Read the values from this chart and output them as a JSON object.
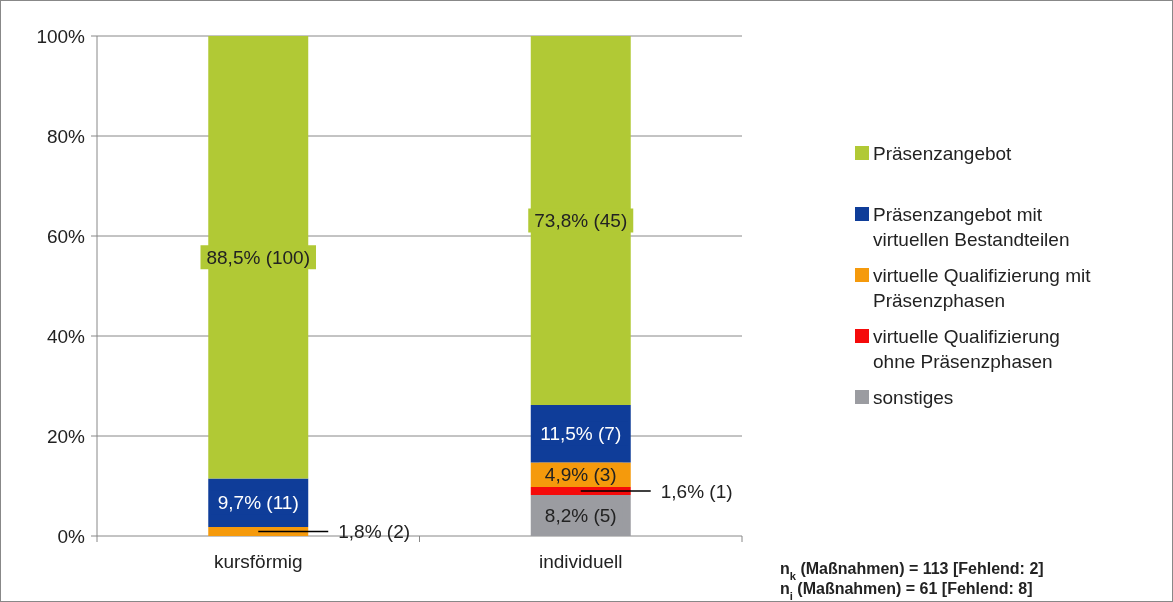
{
  "chart_data": {
    "type": "bar",
    "stacked": true,
    "categories": [
      "kursförmig",
      "individuell"
    ],
    "series": [
      {
        "name": "sonstiges",
        "color": "#9b9ca1",
        "values": [
          0,
          8.2
        ],
        "value_labels": [
          null,
          "8,2% (5)"
        ]
      },
      {
        "name": "virtuelle Qualifizierung ohne Präsenzphasen",
        "color": "#f50a0a",
        "values": [
          0,
          1.6
        ],
        "value_labels": [
          null,
          "1,6% (1)"
        ]
      },
      {
        "name": "virtuelle Qualifizierung mit Präsenzphasen",
        "color": "#f59a0c",
        "values": [
          1.8,
          4.9
        ],
        "value_labels": [
          "1,8% (2)",
          "4,9% (3)"
        ]
      },
      {
        "name": "Präsenzangebot mit virtuellen Bestandteilen",
        "color": "#0f3d99",
        "values": [
          9.7,
          11.5
        ],
        "value_labels": [
          "9,7% (11)",
          "11,5% (7)"
        ]
      },
      {
        "name": "Präsenzangebot",
        "color": "#b1c935",
        "values": [
          88.5,
          73.8
        ],
        "value_labels": [
          "88,5% (100)",
          "73,8% (45)"
        ]
      }
    ],
    "ylim": [
      0,
      100
    ],
    "yticks": [
      {
        "value": 0,
        "label": "0%"
      },
      {
        "value": 20,
        "label": "20%"
      },
      {
        "value": 40,
        "label": "40%"
      },
      {
        "value": 60,
        "label": "60%"
      },
      {
        "value": 80,
        "label": "80%"
      },
      {
        "value": 100,
        "label": "100%"
      }
    ],
    "grid": "y",
    "legend": "right",
    "annotations": [
      "n$_{k}$ (Maßnahmen) = 113 [Fehlend: 2]",
      "n$_{i}$ (Maßnahmen) = 61 [Fehlend: 8]"
    ]
  }
}
